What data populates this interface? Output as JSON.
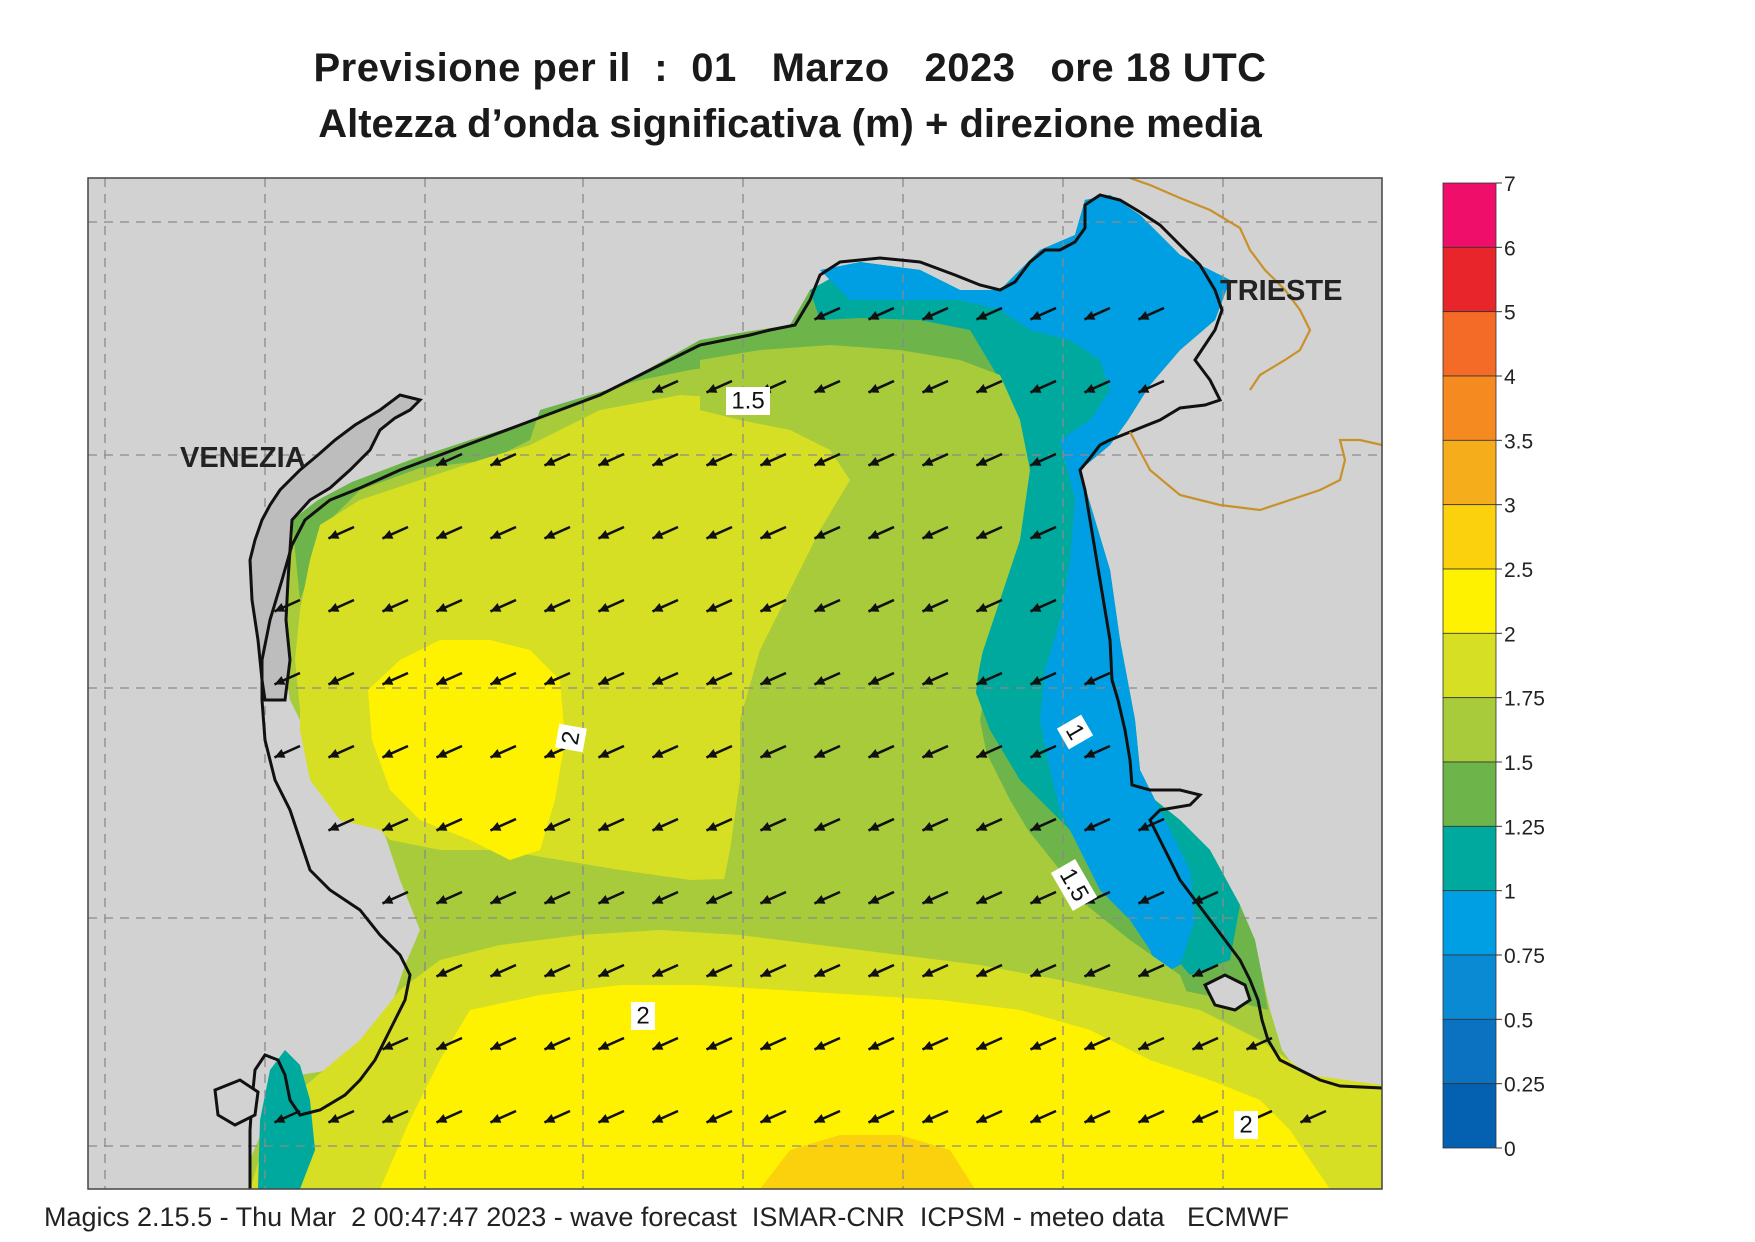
{
  "header": {
    "line1": "Previsione per il  :  01   Marzo   2023   ore 18 UTC",
    "line2": "Altezza d’onda significativa (m) + direzione media"
  },
  "map": {
    "cities": [
      "VENEZIA",
      "TRIESTE"
    ],
    "contour_labels": [
      "1.5",
      "2",
      "1",
      "1.5",
      "2",
      "2"
    ],
    "colors": {
      "land": "#d2d2d2",
      "coast": "#111111",
      "border": "#c8912a",
      "grid": "#8a8a8a"
    },
    "arrow_direction": "south-west"
  },
  "legend": {
    "ticks": [
      "7",
      "6",
      "5",
      "4",
      "3.5",
      "3",
      "2.5",
      "2",
      "1.75",
      "1.5",
      "1.25",
      "1",
      "0.75",
      "0.5",
      "0.25",
      "0"
    ],
    "colors": [
      "#ef0f6b",
      "#e8252a",
      "#f36b26",
      "#f58b20",
      "#f6ad1b",
      "#fbd10d",
      "#fff200",
      "#d6df23",
      "#a7cb3a",
      "#6db44a",
      "#00a99d",
      "#009fe3",
      "#0a8ad2",
      "#0b72c2",
      "#0460b0"
    ]
  },
  "footer": {
    "text": "Magics 2.15.5 - Thu Mar  2 00:47:47 2023 - wave forecast  ISMAR-CNR  ICPSM - meteo data   ECMWF"
  }
}
